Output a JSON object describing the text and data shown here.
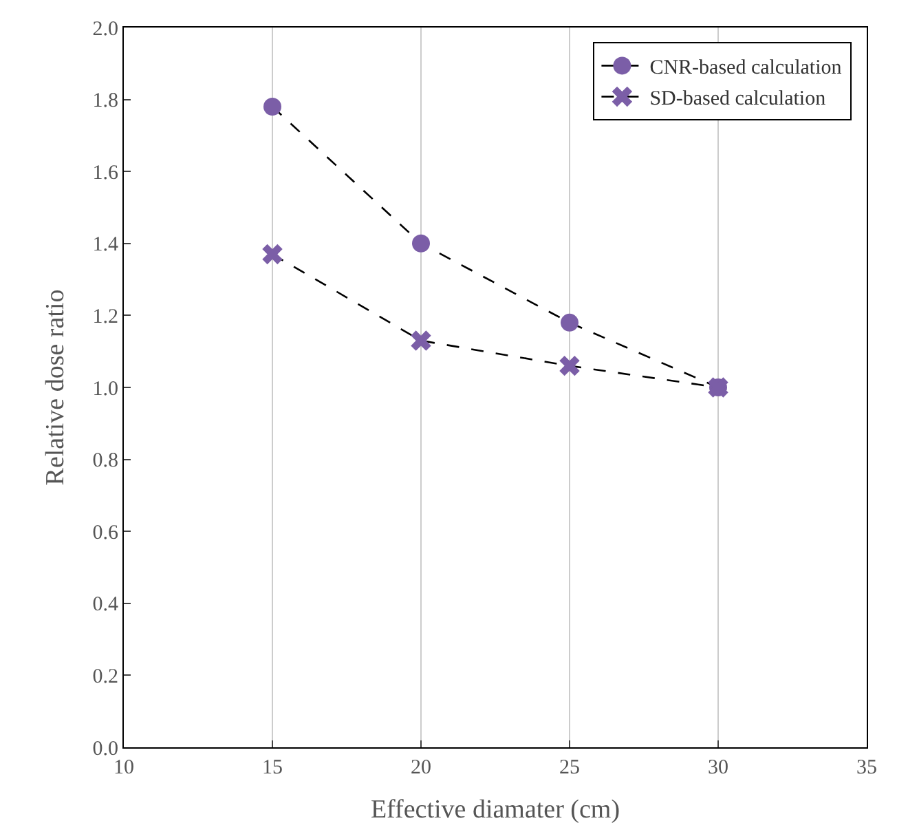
{
  "chart_data": {
    "type": "line",
    "xlabel": "Effective diamater (cm)",
    "ylabel": "Relative dose ratio",
    "x": [
      15,
      20,
      25,
      30
    ],
    "series": [
      {
        "name": "CNR-based calculation",
        "color": "#7b5ea7",
        "marker": "circle",
        "values": [
          1.78,
          1.4,
          1.18,
          1.0
        ]
      },
      {
        "name": "SD-based calculation",
        "color": "#7b5ea7",
        "marker": "cross",
        "values": [
          1.37,
          1.13,
          1.06,
          1.0
        ]
      }
    ],
    "line_style": "dashed",
    "xlim": [
      10,
      35
    ],
    "xticks": [
      10,
      15,
      20,
      25,
      30,
      35
    ],
    "ylim": [
      0,
      2
    ],
    "yticks": [
      {
        "value": 0,
        "label": "0.0"
      },
      {
        "value": 0.2,
        "label": "0.2"
      },
      {
        "value": 0.4,
        "label": "0.4"
      },
      {
        "value": 0.6,
        "label": "0.6"
      },
      {
        "value": 0.8,
        "label": "0.8"
      },
      {
        "value": 1,
        "label": "1.0"
      },
      {
        "value": 1.2,
        "label": "1.2"
      },
      {
        "value": 1.4,
        "label": "1.4"
      },
      {
        "value": 1.6,
        "label": "1.6"
      },
      {
        "value": 1.8,
        "label": "1.8"
      },
      {
        "value": 2,
        "label": "2.0"
      }
    ],
    "grid": "x",
    "legend": "top right"
  }
}
